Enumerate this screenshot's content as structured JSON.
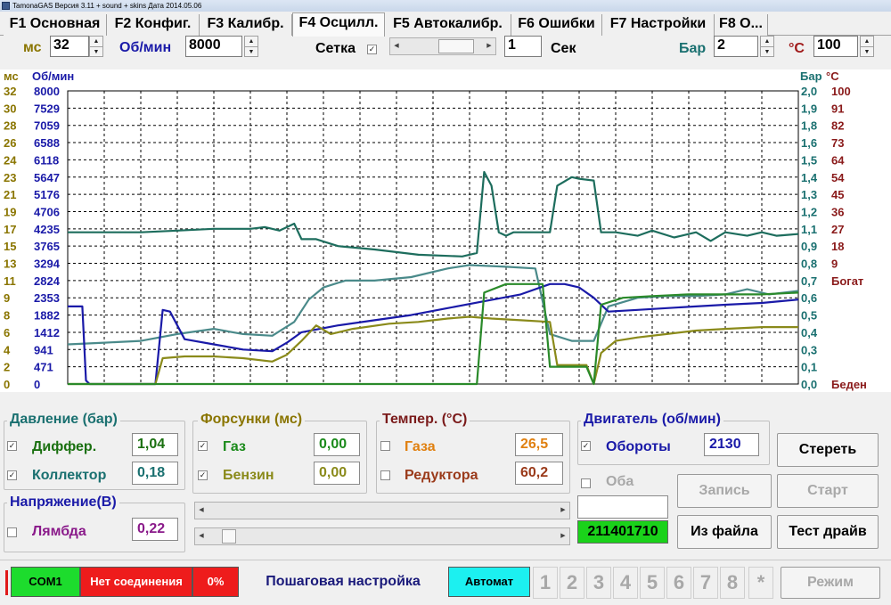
{
  "window": {
    "title": "TamonaGAS  Версия 3.11 + sound + skins  Дата 2014.05.06"
  },
  "tabs": [
    {
      "label": "F1 Основная"
    },
    {
      "label": "F2 Конфиг."
    },
    {
      "label": "F3 Калибр."
    },
    {
      "label": "F4 Осцилл."
    },
    {
      "label": "F5 Автокалибр."
    },
    {
      "label": "F6 Ошибки"
    },
    {
      "label": "F7 Настройки"
    },
    {
      "label": "F8 О..."
    }
  ],
  "active_tab": 3,
  "toolbar": {
    "ms_label": "мс",
    "ms_value": "32",
    "rpm_label": "Об/мин",
    "rpm_value": "8000",
    "grid_label": "Сетка",
    "grid_checked": "✓",
    "sec_value": "1",
    "sec_label": "Сек",
    "bar_label": "Бар",
    "bar_value": "2",
    "temp_label": "°С",
    "temp_value": "100"
  },
  "chart_data": {
    "type": "line",
    "axes": {
      "ms": {
        "label": "мс",
        "ticks": [
          "32",
          "30",
          "28",
          "26",
          "24",
          "23",
          "21",
          "19",
          "17",
          "15",
          "13",
          "11",
          "9",
          "8",
          "6",
          "4",
          "2",
          "0"
        ],
        "color": "#8a7500"
      },
      "rpm": {
        "label": "Об/мин",
        "ticks": [
          "8000",
          "7529",
          "7059",
          "6588",
          "6118",
          "5647",
          "5176",
          "4706",
          "4235",
          "3765",
          "3294",
          "2824",
          "2353",
          "1882",
          "1412",
          "941",
          "471",
          "0"
        ],
        "color": "#1a1aa8"
      },
      "bar": {
        "label": "Бар",
        "ticks": [
          "2,0",
          "1,9",
          "1,8",
          "1,6",
          "1,5",
          "1,4",
          "1,3",
          "1,2",
          "1,1",
          "0,9",
          "0,8",
          "0,7",
          "0,6",
          "0,5",
          "0,4",
          "0,3",
          "0,1",
          "0,0"
        ],
        "color": "#1a7070"
      },
      "temp": {
        "label": "°С",
        "ticks": [
          "100",
          "91",
          "82",
          "73",
          "64",
          "54",
          "45",
          "36",
          "27",
          "18",
          "9",
          "Богат",
          "",
          "",
          "",
          "",
          "",
          "Беден"
        ],
        "color": "#8a1a1a"
      }
    },
    "x_range": [
      0,
      100
    ],
    "y_range": [
      0,
      17
    ],
    "grid": true,
    "series": [
      {
        "color": "#1d6d5d",
        "values": [
          [
            0,
            8.8
          ],
          [
            5,
            8.8
          ],
          [
            10,
            8.8
          ],
          [
            15,
            8.9
          ],
          [
            20,
            9.0
          ],
          [
            25,
            9.0
          ],
          [
            27,
            9.1
          ],
          [
            29,
            8.9
          ],
          [
            31,
            9.3
          ],
          [
            32,
            8.4
          ],
          [
            34,
            8.4
          ],
          [
            37,
            8.0
          ],
          [
            42,
            7.8
          ],
          [
            48,
            7.5
          ],
          [
            54,
            7.4
          ],
          [
            56,
            7.6
          ],
          [
            57,
            12.3
          ],
          [
            58,
            11.5
          ],
          [
            59,
            8.8
          ],
          [
            60,
            8.6
          ],
          [
            61,
            8.8
          ],
          [
            64,
            8.8
          ],
          [
            66,
            8.8
          ],
          [
            67,
            11.5
          ],
          [
            69,
            12.0
          ],
          [
            70,
            11.9
          ],
          [
            72,
            11.8
          ],
          [
            73,
            8.8
          ],
          [
            75,
            8.8
          ],
          [
            78,
            8.6
          ],
          [
            80,
            8.9
          ],
          [
            83,
            8.5
          ],
          [
            86,
            8.8
          ],
          [
            88,
            8.3
          ],
          [
            90,
            8.8
          ],
          [
            93,
            8.6
          ],
          [
            95,
            8.8
          ],
          [
            97,
            8.6
          ],
          [
            100,
            8.7
          ]
        ]
      },
      {
        "color": "#4a8a8a",
        "values": [
          [
            0,
            2.3
          ],
          [
            5,
            2.4
          ],
          [
            10,
            2.5
          ],
          [
            15,
            2.9
          ],
          [
            20,
            3.2
          ],
          [
            24,
            2.9
          ],
          [
            28,
            2.8
          ],
          [
            31,
            3.6
          ],
          [
            33,
            4.9
          ],
          [
            35,
            5.6
          ],
          [
            38,
            6.0
          ],
          [
            42,
            6.0
          ],
          [
            47,
            6.2
          ],
          [
            52,
            6.7
          ],
          [
            55,
            6.9
          ],
          [
            60,
            6.8
          ],
          [
            64,
            6.7
          ],
          [
            66,
            2.9
          ],
          [
            69,
            2.5
          ],
          [
            71,
            2.5
          ],
          [
            72,
            2.5
          ],
          [
            74,
            4.5
          ],
          [
            78,
            5.0
          ],
          [
            82,
            5.1
          ],
          [
            86,
            5.1
          ],
          [
            90,
            5.2
          ],
          [
            93,
            5.5
          ],
          [
            96,
            5.2
          ],
          [
            100,
            5.4
          ]
        ]
      },
      {
        "color": "#1a1aa8",
        "values": [
          [
            0,
            4.5
          ],
          [
            2,
            4.5
          ],
          [
            2.5,
            0.2
          ],
          [
            3,
            0
          ],
          [
            12,
            0
          ],
          [
            13,
            4.3
          ],
          [
            14,
            4.2
          ],
          [
            16,
            2.6
          ],
          [
            20,
            2.3
          ],
          [
            24,
            2.0
          ],
          [
            28,
            1.9
          ],
          [
            30,
            2.4
          ],
          [
            32,
            3.0
          ],
          [
            37,
            3.4
          ],
          [
            42,
            3.7
          ],
          [
            47,
            4.0
          ],
          [
            52,
            4.4
          ],
          [
            57,
            4.8
          ],
          [
            62,
            5.2
          ],
          [
            66,
            5.8
          ],
          [
            68,
            5.8
          ],
          [
            70,
            5.6
          ],
          [
            72,
            5.0
          ],
          [
            74,
            4.2
          ],
          [
            78,
            4.3
          ],
          [
            82,
            4.4
          ],
          [
            86,
            4.5
          ],
          [
            90,
            4.6
          ],
          [
            95,
            4.7
          ],
          [
            100,
            4.9
          ]
        ]
      },
      {
        "color": "#8a8a1a",
        "values": [
          [
            0,
            0
          ],
          [
            12,
            0
          ],
          [
            13,
            1.5
          ],
          [
            16,
            1.6
          ],
          [
            20,
            1.6
          ],
          [
            24,
            1.5
          ],
          [
            28,
            1.3
          ],
          [
            30,
            1.7
          ],
          [
            32,
            2.5
          ],
          [
            34,
            3.4
          ],
          [
            36,
            2.9
          ],
          [
            39,
            3.2
          ],
          [
            44,
            3.5
          ],
          [
            48,
            3.6
          ],
          [
            52,
            3.8
          ],
          [
            55,
            3.9
          ],
          [
            58,
            3.8
          ],
          [
            62,
            3.7
          ],
          [
            66,
            3.6
          ],
          [
            67,
            1.1
          ],
          [
            71,
            1.1
          ],
          [
            72,
            0
          ],
          [
            73,
            1.8
          ],
          [
            75,
            2.5
          ],
          [
            78,
            2.7
          ],
          [
            82,
            2.9
          ],
          [
            86,
            3.1
          ],
          [
            90,
            3.2
          ],
          [
            95,
            3.3
          ],
          [
            100,
            3.3
          ]
        ]
      },
      {
        "color": "#2a8a2a",
        "values": [
          [
            0,
            0
          ],
          [
            56,
            0
          ],
          [
            57,
            5.3
          ],
          [
            60,
            5.8
          ],
          [
            65,
            5.8
          ],
          [
            66,
            1.0
          ],
          [
            69,
            1.0
          ],
          [
            71,
            1.0
          ],
          [
            72,
            0
          ],
          [
            73,
            4.6
          ],
          [
            76,
            5.0
          ],
          [
            80,
            5.1
          ],
          [
            85,
            5.2
          ],
          [
            90,
            5.2
          ],
          [
            95,
            5.2
          ],
          [
            100,
            5.3
          ]
        ]
      }
    ]
  },
  "pressure": {
    "title": "Давление (бар)",
    "diff_label": "Диффер.",
    "diff_value": "1,04",
    "diff_checked": "✓",
    "coll_label": "Коллектор",
    "coll_value": "0,18",
    "coll_checked": "✓"
  },
  "injectors": {
    "title": "Форсунки (мс)",
    "gas_label": "Газ",
    "gas_value": "0,00",
    "gas_checked": "✓",
    "petrol_label": "Бензин",
    "petrol_value": "0,00",
    "petrol_checked": "✓"
  },
  "temp": {
    "title": "Темпер. (°С)",
    "gas_label": "Газа",
    "gas_value": "26,5",
    "reducer_label": "Редуктора",
    "reducer_value": "60,2"
  },
  "engine": {
    "title": "Двигатель (об/мин)",
    "rpm_label": "Обороты",
    "rpm_value": "2130",
    "rpm_checked": "✓"
  },
  "voltage": {
    "title": "Напряжение(В)",
    "lambda_label": "Лямбда",
    "lambda_value": "0,22"
  },
  "both": {
    "label": "Оба"
  },
  "counter": {
    "value": "211401710"
  },
  "buttons": {
    "clear": "Стереть",
    "record": "Запись",
    "start": "Старт",
    "from_file": "Из файла",
    "test_drive": "Тест драйв",
    "mode": "Режим"
  },
  "statusbar": {
    "port": "COM1",
    "connection": "Нет соединения",
    "percent": "0%",
    "step_tuning": "Пошаговая настройка",
    "auto": "Автомат",
    "numbers": [
      "1",
      "2",
      "3",
      "4",
      "5",
      "6",
      "7",
      "8",
      "*"
    ]
  },
  "colors": {
    "green": "#1ddc2d",
    "red": "#ee1c1c",
    "cyan": "#1cf0f0",
    "counter_bg": "#1ad21a"
  }
}
